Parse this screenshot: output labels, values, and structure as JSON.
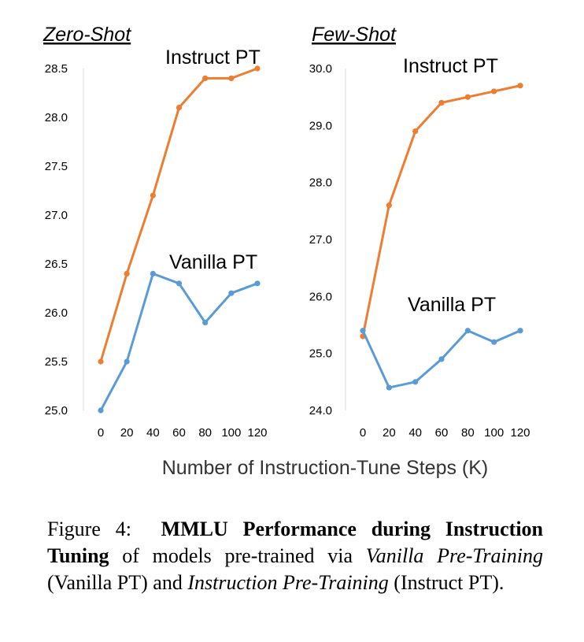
{
  "figure": {
    "xlabel": "Number of Instruction-Tune Steps (K)",
    "caption": {
      "label": "Figure 4:",
      "bold": "MMLU Performance during Instruction Tuning",
      "part1": " of models pre-trained via ",
      "italic1": "Vanilla Pre-Training",
      "part2": " (Vanilla PT) and ",
      "italic2": "Instruction Pre-Training",
      "part3": " (Instruct PT)."
    }
  },
  "chart_data": [
    {
      "type": "line",
      "title": "Zero-Shot",
      "x": [
        0,
        20,
        40,
        60,
        80,
        100,
        120
      ],
      "xticks": [
        "0",
        "20",
        "40",
        "60",
        "80",
        "100",
        "120"
      ],
      "ylim": [
        25.0,
        28.5
      ],
      "yticks": [
        "25.0",
        "25.5",
        "26.0",
        "26.5",
        "27.0",
        "27.5",
        "28.0",
        "28.5"
      ],
      "grid": false,
      "series": [
        {
          "name": "Instruct PT",
          "color": "#ED7D31",
          "values": [
            25.5,
            26.4,
            27.2,
            28.1,
            28.4,
            28.4,
            28.5
          ]
        },
        {
          "name": "Vanilla PT",
          "color": "#5B9BD5",
          "values": [
            25.0,
            25.5,
            26.4,
            26.3,
            25.9,
            26.2,
            26.3
          ]
        }
      ]
    },
    {
      "type": "line",
      "title": "Few-Shot",
      "x": [
        0,
        20,
        40,
        60,
        80,
        100,
        120
      ],
      "xticks": [
        "0",
        "20",
        "40",
        "60",
        "80",
        "100",
        "120"
      ],
      "ylim": [
        24.0,
        30.0
      ],
      "yticks": [
        "24.0",
        "25.0",
        "26.0",
        "27.0",
        "28.0",
        "29.0",
        "30.0"
      ],
      "grid": false,
      "series": [
        {
          "name": "Instruct PT",
          "color": "#ED7D31",
          "values": [
            25.3,
            27.6,
            28.9,
            29.4,
            29.5,
            29.6,
            29.7
          ]
        },
        {
          "name": "Vanilla PT",
          "color": "#5B9BD5",
          "values": [
            25.4,
            24.4,
            24.5,
            24.9,
            25.4,
            25.2,
            25.4
          ]
        }
      ]
    }
  ]
}
